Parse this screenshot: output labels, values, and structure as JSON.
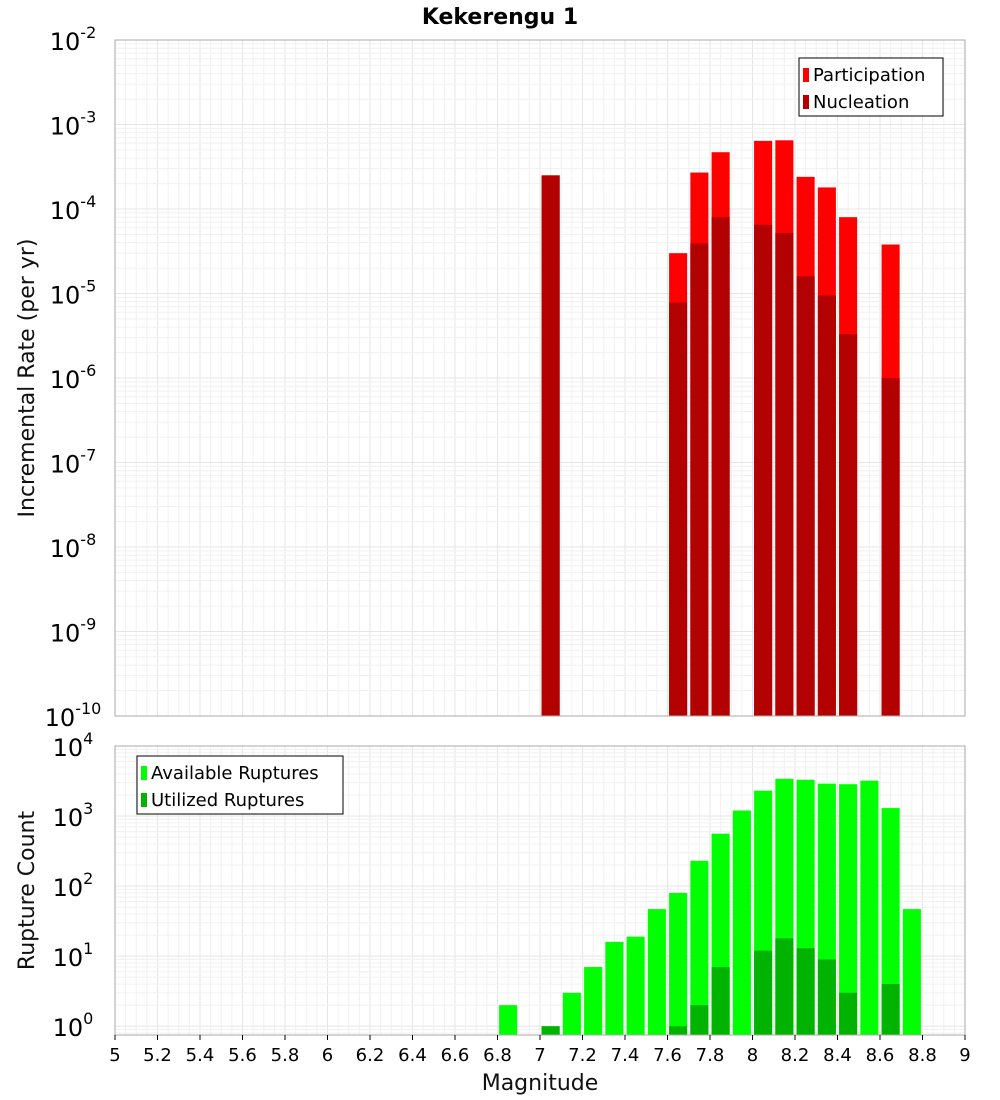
{
  "chart_data": [
    {
      "type": "bar",
      "title": "Kekerengu 1",
      "ylabel": "Incremental Rate (per yr)",
      "xlabel": "",
      "xlim": [
        5,
        9
      ],
      "ylim": [
        1e-10,
        0.01
      ],
      "yscale": "log",
      "y_ticks": [
        {
          "base": "10",
          "exp": "-10"
        },
        {
          "base": "10",
          "exp": "-9"
        },
        {
          "base": "10",
          "exp": "-8"
        },
        {
          "base": "10",
          "exp": "-7"
        },
        {
          "base": "10",
          "exp": "-6"
        },
        {
          "base": "10",
          "exp": "-5"
        },
        {
          "base": "10",
          "exp": "-4"
        },
        {
          "base": "10",
          "exp": "-3"
        },
        {
          "base": "10",
          "exp": "-2"
        }
      ],
      "grid": true,
      "legend_position": "top-right",
      "x": [
        7.05,
        7.65,
        7.75,
        7.85,
        8.05,
        8.15,
        8.25,
        8.35,
        8.45,
        8.65
      ],
      "series": [
        {
          "name": "Participation",
          "color": "#ff0000",
          "values": [
            0.00025,
            3e-05,
            0.00027,
            0.00047,
            0.00064,
            0.00065,
            0.00024,
            0.00018,
            8e-05,
            3.8e-05
          ]
        },
        {
          "name": "Nucleation",
          "color": "#b30000",
          "values": [
            0.00025,
            7.8e-06,
            3.9e-05,
            8e-05,
            6.5e-05,
            5.2e-05,
            1.6e-05,
            9.5e-06,
            3.3e-06,
            1e-06
          ]
        }
      ]
    },
    {
      "type": "bar",
      "title": "",
      "ylabel": "Rupture Count",
      "xlabel": "Magnitude",
      "xlim": [
        5,
        9
      ],
      "ylim": [
        0.75,
        10000
      ],
      "yscale": "log",
      "y_ticks": [
        {
          "base": "10",
          "exp": "0"
        },
        {
          "base": "10",
          "exp": "1"
        },
        {
          "base": "10",
          "exp": "2"
        },
        {
          "base": "10",
          "exp": "3"
        },
        {
          "base": "10",
          "exp": "4"
        }
      ],
      "x_ticks": [
        "5",
        "5.2",
        "5.4",
        "5.6",
        "5.8",
        "6",
        "6.2",
        "6.4",
        "6.6",
        "6.8",
        "7",
        "7.2",
        "7.4",
        "7.6",
        "7.8",
        "8",
        "8.2",
        "8.4",
        "8.6",
        "8.8",
        "9"
      ],
      "grid": true,
      "legend_position": "top-left",
      "x": [
        6.85,
        7.05,
        7.15,
        7.25,
        7.35,
        7.45,
        7.55,
        7.65,
        7.75,
        7.85,
        7.95,
        8.05,
        8.15,
        8.25,
        8.35,
        8.45,
        8.55,
        8.65,
        8.75
      ],
      "series": [
        {
          "name": "Available Ruptures",
          "color": "#00ff00",
          "values": [
            2,
            1,
            3,
            7,
            16,
            19,
            47,
            80,
            230,
            560,
            1200,
            2300,
            3400,
            3300,
            2900,
            2850,
            3200,
            1300,
            47
          ]
        },
        {
          "name": "Utilized Ruptures",
          "color": "#00b300",
          "values": [
            0,
            1,
            0,
            0,
            0,
            0,
            0,
            1,
            2,
            7,
            0,
            12,
            18,
            13,
            9,
            3,
            0,
            4,
            0
          ]
        }
      ]
    }
  ]
}
